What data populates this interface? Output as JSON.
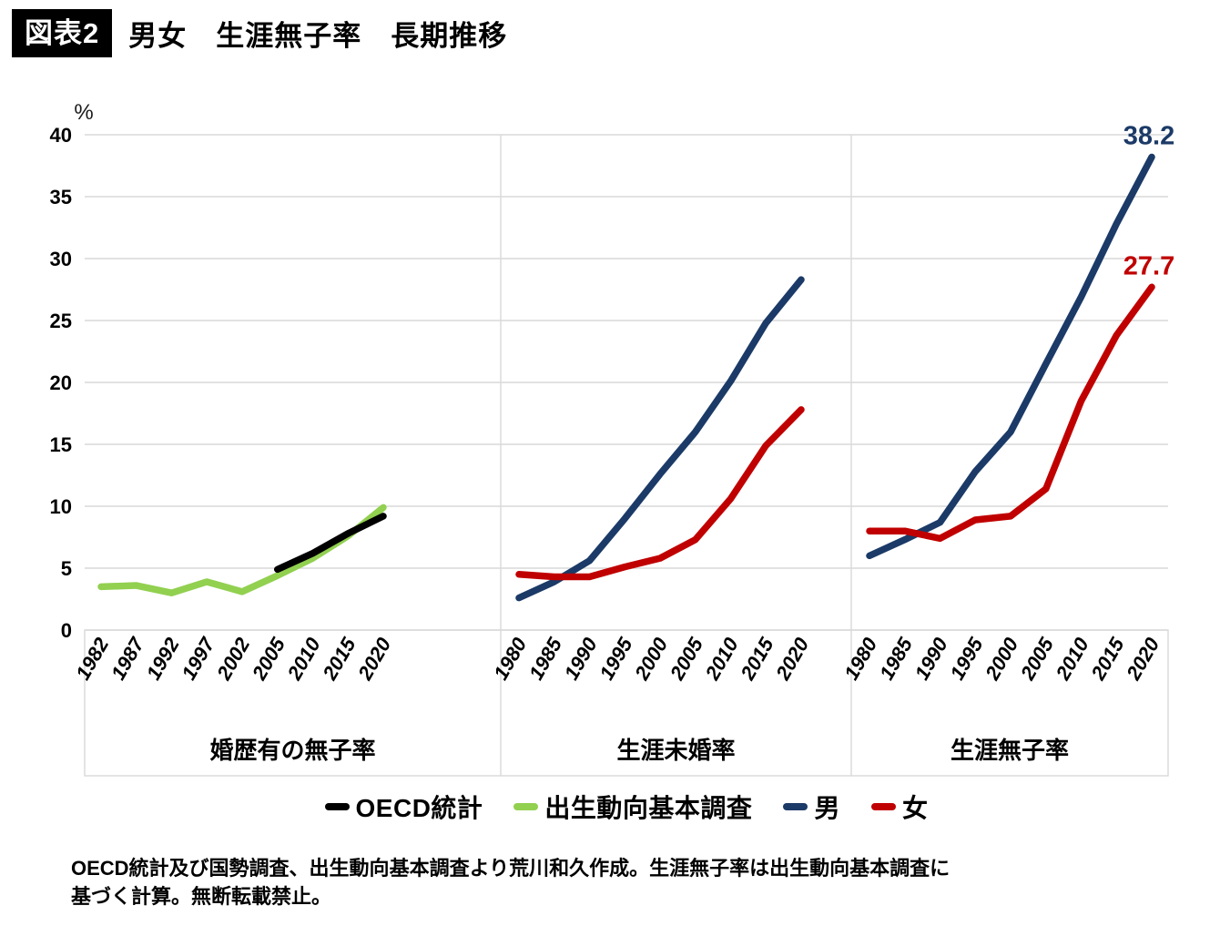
{
  "header": {
    "badge": "図表2",
    "title": "男女　生涯無子率　長期推移"
  },
  "chart_data": {
    "type": "line",
    "unit": "%",
    "ylim": [
      0,
      40
    ],
    "yticks": [
      0,
      5,
      10,
      15,
      20,
      25,
      30,
      35,
      40
    ],
    "grid": true,
    "grid_color": "#d9d9d9",
    "panels": [
      {
        "title": "婚歴有の無子率",
        "categories": [
          "1982",
          "1987",
          "1992",
          "1997",
          "2002",
          "2005",
          "2010",
          "2015",
          "2020"
        ],
        "series": [
          {
            "key": "survey",
            "name": "出生動向基本調査",
            "color": "#92d050",
            "values": [
              3.5,
              3.6,
              3.0,
              3.9,
              3.1,
              4.4,
              5.8,
              7.6,
              9.9
            ]
          },
          {
            "key": "oecd",
            "name": "OECD統計",
            "color": "#000000",
            "values": [
              null,
              null,
              null,
              null,
              null,
              4.9,
              6.2,
              7.8,
              9.2
            ]
          }
        ]
      },
      {
        "title": "生涯未婚率",
        "categories": [
          "1980",
          "1985",
          "1990",
          "1995",
          "2000",
          "2005",
          "2010",
          "2015",
          "2020"
        ],
        "series": [
          {
            "key": "male",
            "name": "男",
            "color": "#1b3a67",
            "values": [
              2.6,
              3.9,
              5.6,
              9.0,
              12.6,
              16.0,
              20.1,
              24.8,
              28.3
            ]
          },
          {
            "key": "female",
            "name": "女",
            "color": "#c00000",
            "values": [
              4.5,
              4.3,
              4.3,
              5.1,
              5.8,
              7.3,
              10.6,
              14.9,
              17.8
            ]
          }
        ]
      },
      {
        "title": "生涯無子率",
        "categories": [
          "1980",
          "1985",
          "1990",
          "1995",
          "2000",
          "2005",
          "2010",
          "2015",
          "2020"
        ],
        "series": [
          {
            "key": "male",
            "name": "男",
            "color": "#1b3a67",
            "values": [
              6.0,
              7.3,
              8.7,
              12.8,
              16.0,
              21.5,
              26.9,
              32.8,
              38.2
            ],
            "end_label": "38.2"
          },
          {
            "key": "female",
            "name": "女",
            "color": "#c00000",
            "values": [
              8.0,
              8.0,
              7.4,
              8.9,
              9.2,
              11.4,
              18.5,
              23.8,
              27.7
            ],
            "end_label": "27.7"
          }
        ]
      }
    ],
    "legend": {
      "position": "bottom",
      "items": [
        {
          "key": "oecd",
          "label": "OECD統計",
          "color": "#000000"
        },
        {
          "key": "survey",
          "label": "出生動向基本調査",
          "color": "#92d050"
        },
        {
          "key": "male",
          "label": "男",
          "color": "#1b3a67"
        },
        {
          "key": "female",
          "label": "女",
          "color": "#c00000"
        }
      ]
    }
  },
  "footer": {
    "line1": "OECD統計及び国勢調査、出生動向基本調査より荒川和久作成。生涯無子率は出生動向基本調査に",
    "line2": "基づく計算。無断転載禁止。"
  }
}
